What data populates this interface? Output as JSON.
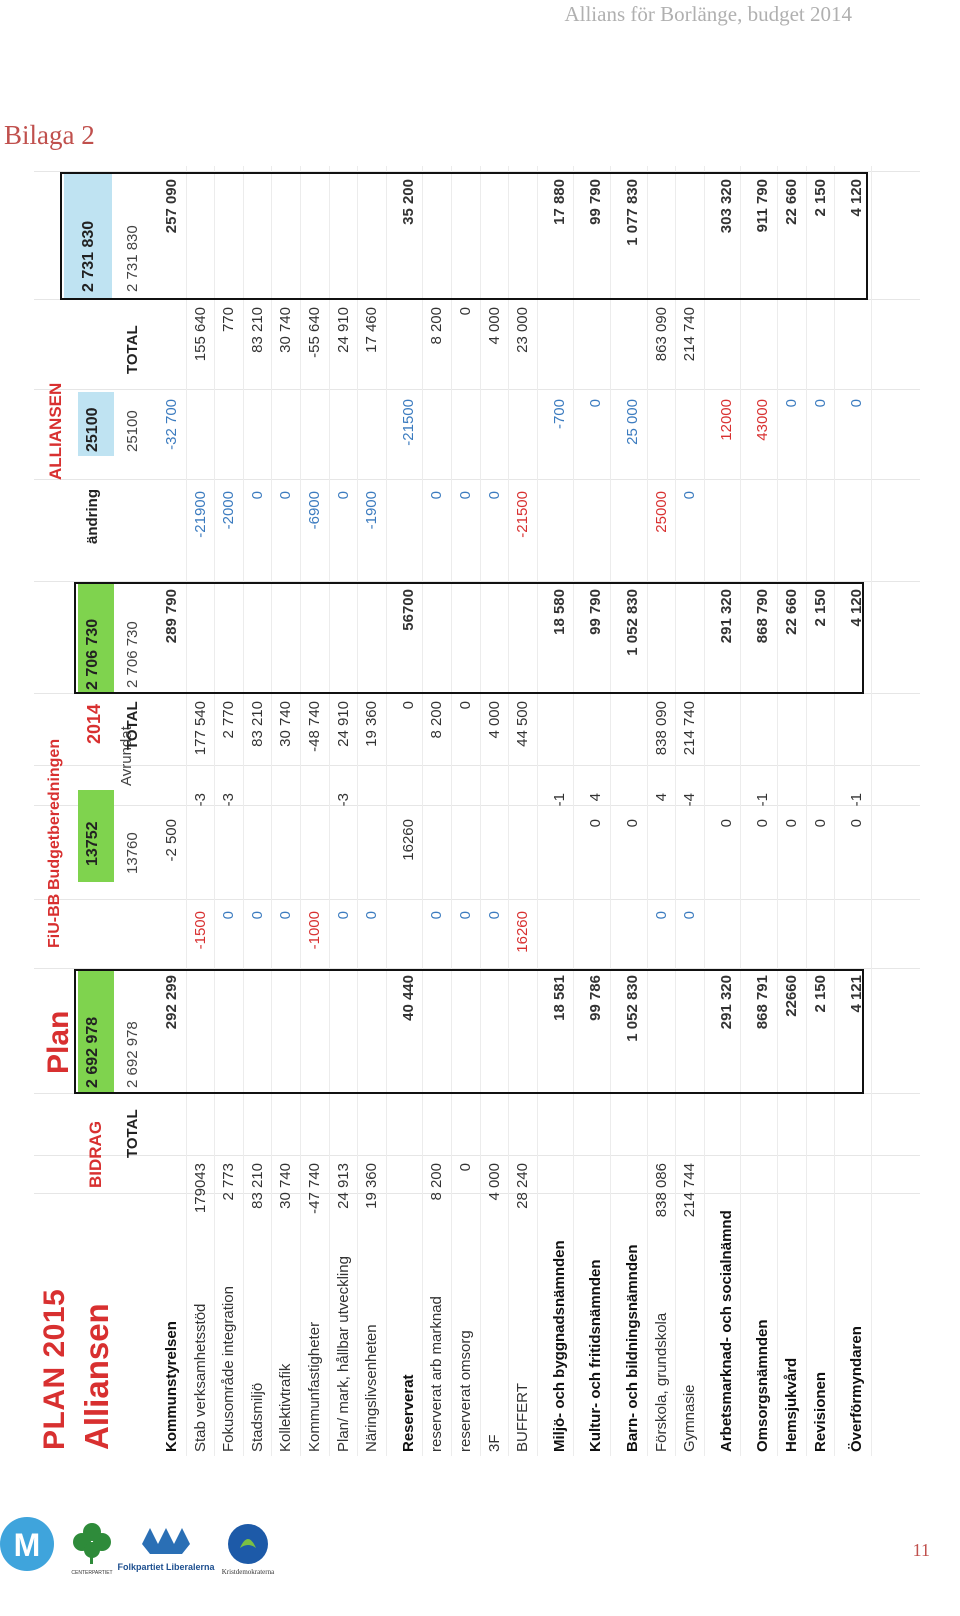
{
  "header": {
    "text": "Allians för Borlänge,  budget 2014"
  },
  "attachment_title": "Bilaga 2",
  "sheet": {
    "title": "PLAN 2015",
    "subtitle": "Alliansen",
    "bidrag_label": "BIDRAG",
    "plan_label": "Plan",
    "fiu_bb_label": "FiU-BB",
    "budgetberedningen_label": "Budgetberedningen",
    "year_label": "2014",
    "alliansen_label": "ALLIANSEN",
    "avrundat_label": "Avrundat",
    "plan_total": "2 692 978",
    "bb_amount": "13752",
    "bb_total": "2 706 730",
    "alliansen_top": "25100",
    "alliansen_total": "2 731 830",
    "col_total": "TOTAL",
    "col_andring": "ändring",
    "col_25100": "25100",
    "col_total_b": "TOTAL",
    "col_total_c": "TOTAL",
    "col_total_d": "TOTAL",
    "col_13760": "13760",
    "col_2706730": "2 706 730",
    "col_2731830": "2 731 830",
    "col_2692978": "2 692 978",
    "rows": [
      {
        "label": "Kommunstyrelsen",
        "bold": true,
        "bidrag": "",
        "plan": "292 299",
        "fiu": "",
        "bb": "-2 500",
        "avr": "",
        "total14": "",
        "bbsum": "289 790",
        "andring": "",
        "a25100": "-32 700",
        "atotal": "",
        "sum": "257 090"
      },
      {
        "label": "Stab verksamhetsstöd",
        "bold": false,
        "bidrag": "179043",
        "plan": "",
        "fiu": "-1500",
        "bb": "",
        "avr": "-3",
        "total14": "177 540",
        "bbsum": "",
        "andring": "-21900",
        "a25100": "",
        "atotal": "155 640",
        "sum": ""
      },
      {
        "label": "Fokusområde integration",
        "bold": false,
        "bidrag": "2 773",
        "plan": "",
        "fiu": "0",
        "bb": "",
        "avr": "-3",
        "total14": "2 770",
        "bbsum": "",
        "andring": "-2000",
        "a25100": "",
        "atotal": "770",
        "sum": ""
      },
      {
        "label": "Stadsmiljö",
        "bold": false,
        "bidrag": "83 210",
        "plan": "",
        "fiu": "0",
        "bb": "",
        "avr": "",
        "total14": "83 210",
        "bbsum": "",
        "andring": "0",
        "a25100": "",
        "atotal": "83 210",
        "sum": ""
      },
      {
        "label": "Kollektivtrafik",
        "bold": false,
        "bidrag": "30 740",
        "plan": "",
        "fiu": "0",
        "bb": "",
        "avr": "",
        "total14": "30 740",
        "bbsum": "",
        "andring": "0",
        "a25100": "",
        "atotal": "30 740",
        "sum": ""
      },
      {
        "label": "Kommunfastigheter",
        "bold": false,
        "bidrag": "-47 740",
        "plan": "",
        "fiu": "-1000",
        "bb": "",
        "avr": "",
        "total14": "-48 740",
        "bbsum": "",
        "andring": "-6900",
        "a25100": "",
        "atotal": "-55 640",
        "sum": ""
      },
      {
        "label": "Plan/ mark, hållbar utveckling",
        "bold": false,
        "bidrag": "24 913",
        "plan": "",
        "fiu": "0",
        "bb": "",
        "avr": "-3",
        "total14": "24 910",
        "bbsum": "",
        "andring": "0",
        "a25100": "",
        "atotal": "24 910",
        "sum": ""
      },
      {
        "label": "Näringslivsenheten",
        "bold": false,
        "bidrag": "19 360",
        "plan": "",
        "fiu": "0",
        "bb": "",
        "avr": "",
        "total14": "19 360",
        "bbsum": "",
        "andring": "-1900",
        "a25100": "",
        "atotal": "17 460",
        "sum": ""
      },
      {
        "label": "Reserverat",
        "bold": true,
        "bidrag": "",
        "plan": "40 440",
        "fiu": "",
        "bb": "16260",
        "avr": "",
        "total14": "0",
        "bbsum": "56700",
        "andring": "",
        "a25100": "-21500",
        "atotal": "",
        "sum": "35 200"
      },
      {
        "label": "reserverat arb marknad",
        "bold": false,
        "bidrag": "8 200",
        "plan": "",
        "fiu": "0",
        "bb": "",
        "avr": "",
        "total14": "8 200",
        "bbsum": "",
        "andring": "0",
        "a25100": "",
        "atotal": "8 200",
        "sum": ""
      },
      {
        "label": "reserverat omsorg",
        "bold": false,
        "bidrag": "0",
        "plan": "",
        "fiu": "0",
        "bb": "",
        "avr": "",
        "total14": "0",
        "bbsum": "",
        "andring": "0",
        "a25100": "",
        "atotal": "0",
        "sum": ""
      },
      {
        "label": "3F",
        "bold": false,
        "bidrag": "4 000",
        "plan": "",
        "fiu": "0",
        "bb": "",
        "avr": "",
        "total14": "4 000",
        "bbsum": "",
        "andring": "0",
        "a25100": "",
        "atotal": "4 000",
        "sum": ""
      },
      {
        "label": "BUFFERT",
        "bold": false,
        "bidrag": "28 240",
        "plan": "",
        "fiu": "16260",
        "bb": "",
        "avr": "",
        "total14": "44 500",
        "bbsum": "",
        "andring": "-21500",
        "a25100": "",
        "atotal": "23 000",
        "sum": ""
      },
      {
        "label": "Miljö- och byggnadsnämnden",
        "bold": true,
        "bidrag": "",
        "plan": "18 581",
        "fiu": "",
        "bb": "",
        "avr": "-1",
        "total14": "",
        "bbsum": "18 580",
        "andring": "",
        "a25100": "-700",
        "atotal": "",
        "sum": "17 880"
      },
      {
        "label": "Kultur- och fritidsnämnden",
        "bold": true,
        "bidrag": "",
        "plan": "99 786",
        "fiu": "",
        "bb": "0",
        "avr": "4",
        "total14": "",
        "bbsum": "99 790",
        "andring": "",
        "a25100": "0",
        "atotal": "",
        "sum": "99 790"
      },
      {
        "label": "Barn- och bildningsnämnden",
        "bold": true,
        "bidrag": "",
        "plan": "1 052 830",
        "fiu": "",
        "bb": "0",
        "avr": "",
        "total14": "",
        "bbsum": "1 052 830",
        "andring": "",
        "a25100": "25 000",
        "atotal": "",
        "sum": "1 077 830"
      },
      {
        "label": "Förskola, grundskola",
        "bold": false,
        "bidrag": "838 086",
        "plan": "",
        "fiu": "0",
        "bb": "",
        "avr": "4",
        "total14": "838 090",
        "bbsum": "",
        "andring": "25000",
        "a25100": "",
        "atotal": "863 090",
        "sum": ""
      },
      {
        "label": "Gymnasie",
        "bold": false,
        "bidrag": "214 744",
        "plan": "",
        "fiu": "0",
        "bb": "",
        "avr": "-4",
        "total14": "214 740",
        "bbsum": "",
        "andring": "0",
        "a25100": "",
        "atotal": "214 740",
        "sum": ""
      },
      {
        "label": "Arbetsmarknad- och socialnämnd",
        "bold": true,
        "bidrag": "",
        "plan": "291 320",
        "fiu": "",
        "bb": "0",
        "avr": "",
        "total14": "",
        "bbsum": "291 320",
        "andring": "",
        "a25100": "12000",
        "atotal": "",
        "sum": "303 320"
      },
      {
        "label": "Omsorgsnämnden",
        "bold": true,
        "bidrag": "",
        "plan": "868 791",
        "fiu": "",
        "bb": "0",
        "avr": "-1",
        "total14": "",
        "bbsum": "868 790",
        "andring": "",
        "a25100": "43000",
        "atotal": "",
        "sum": "911 790"
      },
      {
        "label": "Hemsjukvård",
        "bold": true,
        "bidrag": "",
        "plan": "22660",
        "fiu": "",
        "bb": "0",
        "avr": "",
        "total14": "",
        "bbsum": "22 660",
        "andring": "",
        "a25100": "0",
        "atotal": "",
        "sum": "22 660"
      },
      {
        "label": "Revisionen",
        "bold": true,
        "bidrag": "",
        "plan": "2 150",
        "fiu": "",
        "bb": "0",
        "avr": "",
        "total14": "",
        "bbsum": "2 150",
        "andring": "",
        "a25100": "0",
        "atotal": "",
        "sum": "2 150"
      },
      {
        "label": "Överförmyndaren",
        "bold": true,
        "bidrag": "",
        "plan": "4 121",
        "fiu": "",
        "bb": "0",
        "avr": "-1",
        "total14": "",
        "bbsum": "4 120",
        "andring": "",
        "a25100": "0",
        "atotal": "",
        "sum": "4 120"
      }
    ]
  },
  "footer": {
    "logo_folkpartiet_text": "Folkpartiet Liberalerna",
    "logo_centerpartiet_text": "CENTERPARTIET",
    "logo_kd_text": "Kristdemokraterna",
    "logo_m_text": "M",
    "page_number": "11",
    "colors": {
      "m_blue": "#3fa4dc",
      "c_green": "#2e8b3a",
      "fp_blue": "#2a6fb5",
      "kd_blue": "#1d5aa8"
    }
  }
}
